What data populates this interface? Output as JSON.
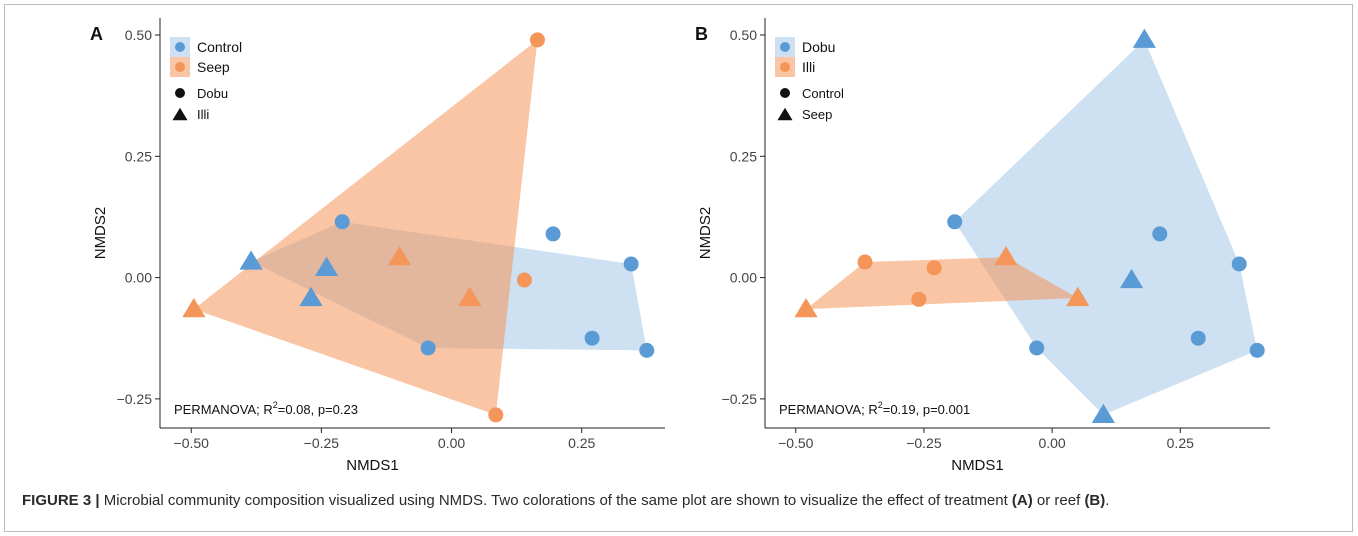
{
  "caption": {
    "label": "FIGURE 3 |",
    "text_1": " Microbial community composition visualized using NMDS. Two colorations of the same plot are shown to visualize the effect of treatment ",
    "panel_a": "(A)",
    "text_2": " or reef ",
    "panel_b": "(B)",
    "text_3": "."
  },
  "colors": {
    "blue": "#5b9bd5",
    "orange": "#f4955a"
  },
  "chart_data": [
    {
      "type": "scatter",
      "panel_label": "A",
      "xlabel": "NMDS1",
      "ylabel": "NMDS2",
      "xlim": [
        -0.56,
        0.41
      ],
      "ylim": [
        -0.31,
        0.535
      ],
      "xticks": [
        {
          "v": -0.5,
          "label": "−0.50"
        },
        {
          "v": -0.25,
          "label": "−0.25"
        },
        {
          "v": 0,
          "label": "0.00"
        },
        {
          "v": 0.25,
          "label": "0.25"
        }
      ],
      "yticks": [
        {
          "v": -0.25,
          "label": "−0.25"
        },
        {
          "v": 0,
          "label": "0.00"
        },
        {
          "v": 0.25,
          "label": "0.25"
        },
        {
          "v": 0.5,
          "label": "0.50"
        }
      ],
      "annotation": {
        "prefix": "PERMANOVA; R",
        "sup": "2",
        "suffix": "=0.08, p=0.23"
      },
      "color_legend": [
        {
          "label": "Control",
          "color": "blue"
        },
        {
          "label": "Seep",
          "color": "orange"
        }
      ],
      "shape_legend": [
        {
          "label": "Dobu",
          "shape": "circle"
        },
        {
          "label": "Illi",
          "shape": "triangle"
        }
      ],
      "hulls": [
        {
          "color": "blue",
          "points": [
            [
              -0.385,
              0.033
            ],
            [
              -0.21,
              0.115
            ],
            [
              0.345,
              0.028
            ],
            [
              0.375,
              -0.15
            ],
            [
              -0.045,
              -0.145
            ]
          ]
        },
        {
          "color": "orange",
          "points": [
            [
              -0.495,
              -0.065
            ],
            [
              0.165,
              0.49
            ],
            [
              0.085,
              -0.283
            ]
          ]
        }
      ],
      "points": [
        {
          "x": -0.21,
          "y": 0.115,
          "shape": "circle",
          "color": "blue"
        },
        {
          "x": 0.195,
          "y": 0.09,
          "shape": "circle",
          "color": "blue"
        },
        {
          "x": 0.345,
          "y": 0.028,
          "shape": "circle",
          "color": "blue"
        },
        {
          "x": 0.27,
          "y": -0.125,
          "shape": "circle",
          "color": "blue"
        },
        {
          "x": 0.375,
          "y": -0.15,
          "shape": "circle",
          "color": "blue"
        },
        {
          "x": -0.045,
          "y": -0.145,
          "shape": "circle",
          "color": "blue"
        },
        {
          "x": -0.385,
          "y": 0.033,
          "shape": "triangle",
          "color": "blue"
        },
        {
          "x": -0.24,
          "y": 0.02,
          "shape": "triangle",
          "color": "blue"
        },
        {
          "x": -0.27,
          "y": -0.042,
          "shape": "triangle",
          "color": "blue"
        },
        {
          "x": 0.165,
          "y": 0.49,
          "shape": "circle",
          "color": "orange"
        },
        {
          "x": 0.14,
          "y": -0.005,
          "shape": "circle",
          "color": "orange"
        },
        {
          "x": 0.085,
          "y": -0.283,
          "shape": "circle",
          "color": "orange"
        },
        {
          "x": -0.1,
          "y": 0.042,
          "shape": "triangle",
          "color": "orange"
        },
        {
          "x": 0.035,
          "y": -0.042,
          "shape": "triangle",
          "color": "orange"
        },
        {
          "x": -0.495,
          "y": -0.065,
          "shape": "triangle",
          "color": "orange"
        }
      ]
    },
    {
      "type": "scatter",
      "panel_label": "B",
      "xlabel": "NMDS1",
      "ylabel": "NMDS2",
      "xlim": [
        -0.56,
        0.425
      ],
      "ylim": [
        -0.31,
        0.535
      ],
      "xticks": [
        {
          "v": -0.5,
          "label": "−0.50"
        },
        {
          "v": -0.25,
          "label": "−0.25"
        },
        {
          "v": 0,
          "label": "0.00"
        },
        {
          "v": 0.25,
          "label": "0.25"
        }
      ],
      "yticks": [
        {
          "v": -0.25,
          "label": "−0.25"
        },
        {
          "v": 0,
          "label": "0.00"
        },
        {
          "v": 0.25,
          "label": "0.25"
        },
        {
          "v": 0.5,
          "label": "0.50"
        }
      ],
      "annotation": {
        "prefix": "PERMANOVA; R",
        "sup": "2",
        "suffix": "=0.19, p=0.001"
      },
      "color_legend": [
        {
          "label": "Dobu",
          "color": "blue"
        },
        {
          "label": "Illi",
          "color": "orange"
        }
      ],
      "shape_legend": [
        {
          "label": "Control",
          "shape": "circle"
        },
        {
          "label": "Seep",
          "shape": "triangle"
        }
      ],
      "hulls": [
        {
          "color": "blue",
          "points": [
            [
              -0.19,
              0.115
            ],
            [
              0.18,
              0.49
            ],
            [
              0.365,
              0.028
            ],
            [
              0.4,
              -0.15
            ],
            [
              0.1,
              -0.283
            ],
            [
              -0.03,
              -0.145
            ]
          ]
        },
        {
          "color": "orange",
          "points": [
            [
              -0.48,
              -0.065
            ],
            [
              -0.365,
              0.032
            ],
            [
              -0.09,
              0.042
            ],
            [
              0.05,
              -0.042
            ]
          ]
        }
      ],
      "points": [
        {
          "x": -0.19,
          "y": 0.115,
          "shape": "circle",
          "color": "blue"
        },
        {
          "x": 0.21,
          "y": 0.09,
          "shape": "circle",
          "color": "blue"
        },
        {
          "x": 0.365,
          "y": 0.028,
          "shape": "circle",
          "color": "blue"
        },
        {
          "x": 0.285,
          "y": -0.125,
          "shape": "circle",
          "color": "blue"
        },
        {
          "x": 0.4,
          "y": -0.15,
          "shape": "circle",
          "color": "blue"
        },
        {
          "x": -0.03,
          "y": -0.145,
          "shape": "circle",
          "color": "blue"
        },
        {
          "x": 0.18,
          "y": 0.49,
          "shape": "triangle",
          "color": "blue"
        },
        {
          "x": 0.155,
          "y": -0.005,
          "shape": "triangle",
          "color": "blue"
        },
        {
          "x": 0.1,
          "y": -0.283,
          "shape": "triangle",
          "color": "blue"
        },
        {
          "x": -0.365,
          "y": 0.032,
          "shape": "circle",
          "color": "orange"
        },
        {
          "x": -0.23,
          "y": 0.02,
          "shape": "circle",
          "color": "orange"
        },
        {
          "x": -0.26,
          "y": -0.045,
          "shape": "circle",
          "color": "orange"
        },
        {
          "x": -0.09,
          "y": 0.042,
          "shape": "triangle",
          "color": "orange"
        },
        {
          "x": 0.05,
          "y": -0.042,
          "shape": "triangle",
          "color": "orange"
        },
        {
          "x": -0.48,
          "y": -0.065,
          "shape": "triangle",
          "color": "orange"
        }
      ]
    }
  ]
}
